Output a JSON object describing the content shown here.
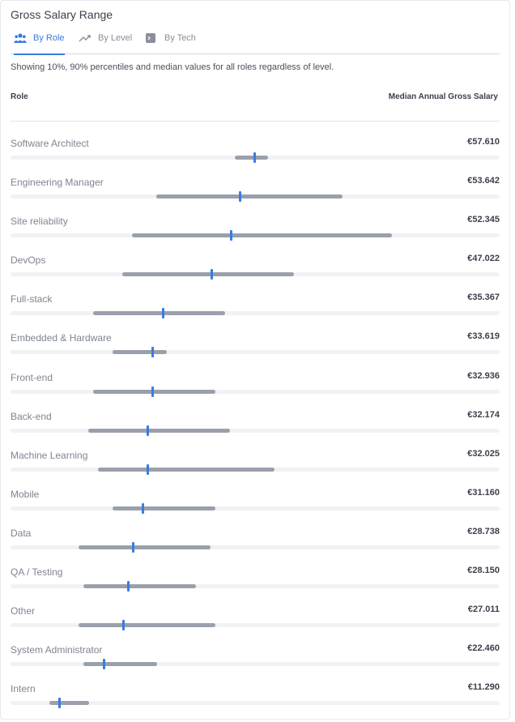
{
  "card": {
    "title": "Gross Salary Range"
  },
  "tabs": [
    {
      "label": "By Role",
      "icon": "users-icon",
      "active": true
    },
    {
      "label": "By Level",
      "icon": "trending-up-icon",
      "active": false
    },
    {
      "label": "By Tech",
      "icon": "code-box-icon",
      "active": false
    }
  ],
  "description": "Showing 10%, 90% percentiles and median values for all roles regardless of level.",
  "table": {
    "col_role": "Role",
    "col_salary": "Median Annual Gross Salary"
  },
  "colors": {
    "accent": "#3a7be0",
    "range": "#9aa0ab",
    "track": "#f1f2f4"
  },
  "rows": [
    {
      "role": "Software Architect",
      "median": "€57.610",
      "p10": 0.459,
      "p90": 0.527,
      "med": 0.499
    },
    {
      "role": "Engineering Manager",
      "median": "€53.642",
      "p10": 0.298,
      "p90": 0.679,
      "med": 0.469
    },
    {
      "role": "Site reliability",
      "median": "€52.345",
      "p10": 0.248,
      "p90": 0.779,
      "med": 0.45
    },
    {
      "role": "DevOps",
      "median": "€47.022",
      "p10": 0.228,
      "p90": 0.579,
      "med": 0.411
    },
    {
      "role": "Full-stack",
      "median": "€35.367",
      "p10": 0.169,
      "p90": 0.439,
      "med": 0.311
    },
    {
      "role": "Embedded & Hardware",
      "median": "€33.619",
      "p10": 0.209,
      "p90": 0.319,
      "med": 0.29
    },
    {
      "role": "Front-end",
      "median": "€32.936",
      "p10": 0.169,
      "p90": 0.419,
      "med": 0.29
    },
    {
      "role": "Back-end",
      "median": "€32.174",
      "p10": 0.159,
      "p90": 0.449,
      "med": 0.28
    },
    {
      "role": "Machine Learning",
      "median": "€32.025",
      "p10": 0.179,
      "p90": 0.539,
      "med": 0.28
    },
    {
      "role": "Mobile",
      "median": "€31.160",
      "p10": 0.209,
      "p90": 0.419,
      "med": 0.27
    },
    {
      "role": "Data",
      "median": "€28.738",
      "p10": 0.139,
      "p90": 0.409,
      "med": 0.25
    },
    {
      "role": "QA / Testing",
      "median": "€28.150",
      "p10": 0.149,
      "p90": 0.379,
      "med": 0.24
    },
    {
      "role": "Other",
      "median": "€27.011",
      "p10": 0.139,
      "p90": 0.419,
      "med": 0.23
    },
    {
      "role": "System Administrator",
      "median": "€22.460",
      "p10": 0.149,
      "p90": 0.299,
      "med": 0.19
    },
    {
      "role": "Intern",
      "median": "€11.290",
      "p10": 0.08,
      "p90": 0.16,
      "med": 0.1
    }
  ]
}
